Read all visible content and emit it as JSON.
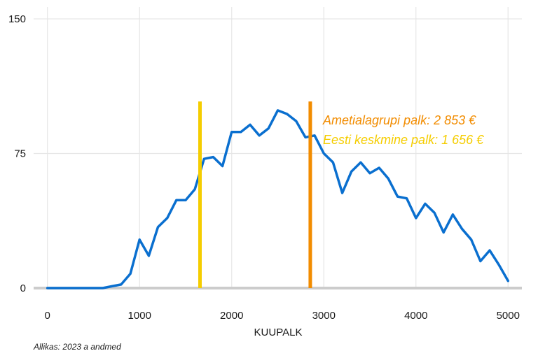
{
  "chart_data": {
    "type": "line",
    "xlabel": "KUUPALK",
    "ylabel": "",
    "xlim": [
      -150,
      5150
    ],
    "ylim": [
      0,
      150
    ],
    "x_ticks": [
      0,
      1000,
      2000,
      3000,
      4000,
      5000
    ],
    "x_tick_labels": [
      "0",
      "1000",
      "2000",
      "3000",
      "4000",
      "5000"
    ],
    "y_ticks": [
      0,
      75,
      150
    ],
    "y_tick_labels": [
      "0",
      "75",
      "150"
    ],
    "grid": true,
    "series": [
      {
        "color": "#0a6fcf",
        "x": [
          0,
          100,
          200,
          300,
          400,
          500,
          600,
          700,
          800,
          900,
          1000,
          1100,
          1200,
          1300,
          1400,
          1500,
          1600,
          1700,
          1800,
          1900,
          2000,
          2100,
          2200,
          2300,
          2400,
          2500,
          2600,
          2700,
          2800,
          2900,
          3000,
          3100,
          3200,
          3300,
          3400,
          3500,
          3600,
          3700,
          3800,
          3900,
          4000,
          4100,
          4200,
          4300,
          4400,
          4500,
          4600,
          4700,
          4800,
          4900,
          5000
        ],
        "y": [
          0,
          0,
          0,
          0,
          0,
          0,
          0,
          1,
          2,
          8,
          27,
          18,
          34,
          39,
          49,
          49,
          55,
          72,
          73,
          68,
          87,
          87,
          91,
          85,
          89,
          99,
          97,
          93,
          84,
          85,
          75,
          70,
          53,
          65,
          70,
          64,
          67,
          61,
          51,
          50,
          39,
          47,
          42,
          31,
          41,
          33,
          27,
          15,
          21,
          13,
          4
        ]
      }
    ],
    "vlines": [
      {
        "x": 1656,
        "y_top": 104,
        "color": "#f5cd00"
      },
      {
        "x": 2853,
        "y_top": 104,
        "color": "#f28c00"
      }
    ],
    "annotations": [
      {
        "text": "Ametialagrupi palk: 2 853 €",
        "color": "#f28c00"
      },
      {
        "text": "Eesti keskmine palk: 1 656 €",
        "color": "#f5cd00"
      }
    ]
  },
  "source_text": "Allikas: 2023 a andmed"
}
